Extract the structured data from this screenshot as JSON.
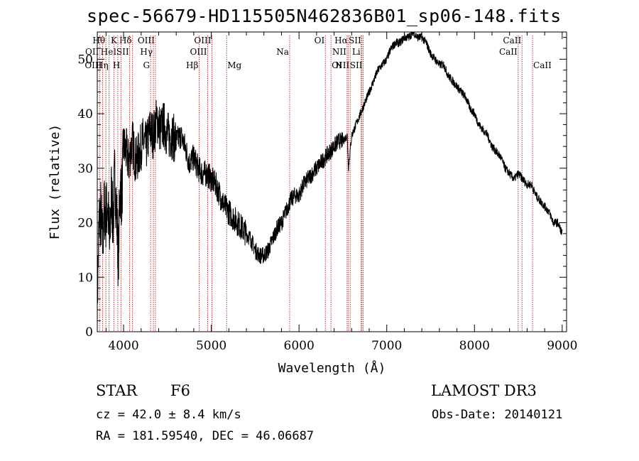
{
  "chart_data": {
    "type": "line",
    "title": "spec-56679-HD115505N462836B01_sp06-148.fits",
    "xlabel": "Wavelength (Å)",
    "ylabel": "Flux (relative)",
    "xlim": [
      3700,
      9050
    ],
    "ylim": [
      0,
      55
    ],
    "xticks": [
      4000,
      5000,
      6000,
      7000,
      8000,
      9000
    ],
    "yticks": [
      0,
      10,
      20,
      30,
      40,
      50
    ],
    "grid": false,
    "series": [
      {
        "name": "flux",
        "x": [
          3700,
          3720,
          3740,
          3760,
          3780,
          3800,
          3820,
          3840,
          3860,
          3880,
          3900,
          3920,
          3940,
          3960,
          3980,
          4000,
          4030,
          4060,
          4100,
          4140,
          4180,
          4220,
          4260,
          4300,
          4340,
          4380,
          4420,
          4460,
          4500,
          4550,
          4600,
          4650,
          4700,
          4750,
          4800,
          4850,
          4900,
          4950,
          5000,
          5050,
          5100,
          5150,
          5200,
          5250,
          5300,
          5350,
          5400,
          5450,
          5500,
          5550,
          5600,
          5650,
          5700,
          5750,
          5800,
          5850,
          5900,
          5950,
          6000,
          6050,
          6100,
          6150,
          6200,
          6250,
          6300,
          6350,
          6400,
          6450,
          6500,
          6550,
          6563,
          6600,
          6650,
          6700,
          6750,
          6800,
          6850,
          6900,
          6950,
          7000,
          7050,
          7100,
          7150,
          7200,
          7250,
          7300,
          7350,
          7400,
          7450,
          7500,
          7550,
          7600,
          7650,
          7700,
          7750,
          7800,
          7850,
          7900,
          7950,
          8000,
          8050,
          8100,
          8150,
          8200,
          8250,
          8300,
          8350,
          8400,
          8450,
          8500,
          8550,
          8600,
          8650,
          8700,
          8750,
          8800,
          8850,
          8900,
          8950,
          9000
        ],
        "values": [
          5,
          20,
          22,
          16,
          23,
          21,
          24,
          15,
          26,
          20,
          29,
          22,
          13,
          27,
          25,
          34,
          33,
          31,
          35,
          31,
          33,
          35,
          34,
          37,
          36,
          39,
          37,
          38,
          36,
          36,
          35,
          36,
          34,
          31,
          32,
          30,
          29,
          29,
          28,
          27,
          25,
          23,
          22,
          21,
          20,
          19,
          18,
          17,
          15,
          14,
          14,
          15,
          17,
          19,
          20,
          22,
          24,
          25,
          25,
          27,
          28,
          29,
          30,
          31,
          32,
          33,
          34,
          35,
          35,
          36,
          30,
          36,
          38,
          40,
          42,
          44,
          46,
          48,
          49,
          50,
          52,
          53,
          53,
          54,
          54,
          55,
          54,
          54,
          53,
          51,
          50,
          49,
          49,
          47,
          46,
          45,
          44,
          43,
          41,
          40,
          38,
          37,
          36,
          34,
          33,
          32,
          30,
          29,
          28,
          29,
          28,
          27,
          27,
          25,
          24,
          23,
          22,
          20,
          20,
          18
        ]
      }
    ],
    "lines": [
      {
        "label": "Hθ",
        "wl": 3798,
        "row": 0,
        "align": "r"
      },
      {
        "label": "K",
        "wl": 3934,
        "row": 0,
        "align": "r"
      },
      {
        "label": "Hδ",
        "wl": 4102,
        "row": 0,
        "align": "r"
      },
      {
        "label": "OIII",
        "wl": 4363,
        "row": 0,
        "align": "r"
      },
      {
        "label": "OIII",
        "wl": 5007,
        "row": 0,
        "align": "r"
      },
      {
        "label": "OI",
        "wl": 6300,
        "row": 0,
        "align": "r"
      },
      {
        "label": "Hα",
        "wl": 6563,
        "row": 0,
        "align": "r"
      },
      {
        "label": "SII",
        "wl": 6717,
        "row": 0,
        "align": "r"
      },
      {
        "label": "CaII",
        "wl": 8542,
        "row": 0,
        "align": "r"
      },
      {
        "label": "OII",
        "wl": 3727,
        "row": 1,
        "align": "r"
      },
      {
        "label": "He",
        "wl": 3889,
        "row": 1,
        "align": "r"
      },
      {
        "label": "lSII",
        "wl": 4069,
        "row": 1,
        "align": "r"
      },
      {
        "label": "Hγ",
        "wl": 4340,
        "row": 1,
        "align": "r"
      },
      {
        "label": "OIII",
        "wl": 4959,
        "row": 1,
        "align": "r"
      },
      {
        "label": "Na",
        "wl": 5893,
        "row": 1,
        "align": "r"
      },
      {
        "label": "NII",
        "wl": 6548,
        "row": 1,
        "align": "r"
      },
      {
        "label": "Li",
        "wl": 6708,
        "row": 1,
        "align": "r"
      },
      {
        "label": "CaII",
        "wl": 8498,
        "row": 1,
        "align": "r"
      },
      {
        "label": "OIII",
        "wl": 3760,
        "row": 2,
        "align": "r"
      },
      {
        "label": "Hη",
        "wl": 3835,
        "row": 2,
        "align": "r"
      },
      {
        "label": "H",
        "wl": 3970,
        "row": 2,
        "align": "r"
      },
      {
        "label": "G",
        "wl": 4308,
        "row": 2,
        "align": "r"
      },
      {
        "label": "Hβ",
        "wl": 4861,
        "row": 2,
        "align": "r"
      },
      {
        "label": "Mg",
        "wl": 5175,
        "row": 2,
        "align": "l"
      },
      {
        "label": "OI",
        "wl": 6364,
        "row": 2,
        "align": "l"
      },
      {
        "label": "NII",
        "wl": 6583,
        "row": 2,
        "align": "r"
      },
      {
        "label": "SII",
        "wl": 6731,
        "row": 2,
        "align": "r"
      },
      {
        "label": "CaII",
        "wl": 8662,
        "row": 2,
        "align": "l"
      }
    ]
  },
  "info": {
    "object_class": "STAR",
    "subclass": "F6",
    "survey": "LAMOST DR3",
    "cz": "cz = 42.0 ± 8.4 km/s",
    "obs_date": "Obs-Date: 20140121",
    "coords": "RA = 181.59540, DEC =  46.06687"
  }
}
